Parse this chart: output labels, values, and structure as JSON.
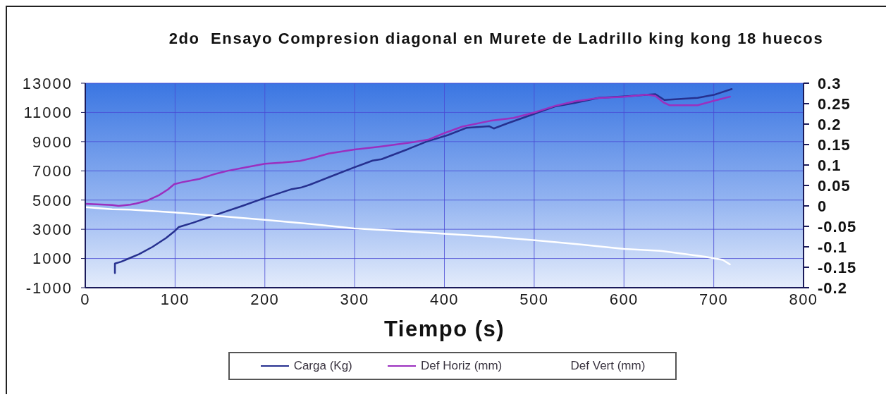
{
  "chart_data": {
    "type": "line",
    "title": "2do  Ensayo Compresion diagonal en Murete de Ladrillo king kong 18 huecos",
    "xlabel": "Tiempo (s)",
    "xlim": [
      0,
      800
    ],
    "xticks": [
      0,
      100,
      200,
      300,
      400,
      500,
      600,
      700,
      800
    ],
    "ylim": [
      -1000,
      13000
    ],
    "yticks": [
      -1000,
      1000,
      3000,
      5000,
      7000,
      9000,
      11000,
      13000
    ],
    "y2lim": [
      -0.2,
      0.3
    ],
    "y2ticks": [
      -0.2,
      -0.15,
      -0.1,
      -0.05,
      0,
      0.05,
      0.1,
      0.15,
      0.2,
      0.25,
      0.3
    ],
    "grid": true,
    "legend": "bottom",
    "series": [
      {
        "name": "Carga (Kg)",
        "color": "#26308f",
        "x": [
          33,
          33,
          40,
          50,
          60,
          75,
          90,
          100,
          104,
          120,
          146,
          175,
          200,
          230,
          240,
          250,
          275,
          300,
          320,
          330,
          360,
          380,
          404,
          425,
          450,
          455,
          470,
          500,
          523,
          545,
          572,
          600,
          635,
          645,
          682,
          700,
          720
        ],
        "values": [
          0,
          650,
          780,
          1040,
          1300,
          1800,
          2400,
          2900,
          3150,
          3450,
          4000,
          4600,
          5150,
          5750,
          5850,
          6050,
          6650,
          7250,
          7700,
          7800,
          8500,
          9000,
          9450,
          9950,
          10050,
          9900,
          10250,
          10900,
          11400,
          11650,
          12000,
          12100,
          12250,
          11850,
          12000,
          12200,
          12600
        ]
      },
      {
        "name": "Def Horiz (mm)",
        "color": "#9b2fbf",
        "axis": "y2",
        "x": [
          0,
          30,
          37,
          50,
          57,
          69,
          82,
          92,
          99,
          108,
          127,
          146,
          159,
          180,
          200,
          220,
          239,
          255,
          271,
          300,
          328,
          366,
          382,
          400,
          420,
          451,
          477,
          501,
          524,
          546,
          572,
          600,
          625,
          635,
          644,
          651,
          682,
          700,
          718
        ],
        "values": [
          0.005,
          0.002,
          0.0,
          0.003,
          0.006,
          0.013,
          0.026,
          0.04,
          0.053,
          0.058,
          0.066,
          0.079,
          0.086,
          0.095,
          0.103,
          0.106,
          0.11,
          0.118,
          0.128,
          0.138,
          0.145,
          0.156,
          0.162,
          0.178,
          0.194,
          0.208,
          0.215,
          0.229,
          0.245,
          0.256,
          0.264,
          0.267,
          0.272,
          0.269,
          0.253,
          0.246,
          0.246,
          0.257,
          0.267
        ]
      },
      {
        "name": "Def Vert (mm)",
        "color": "#ffffff",
        "axis": "y2",
        "x": [
          0,
          30,
          50,
          99,
          150,
          200,
          250,
          300,
          350,
          400,
          450,
          501,
          550,
          600,
          641,
          690,
          710,
          718
        ],
        "values": [
          -0.003,
          -0.008,
          -0.009,
          -0.016,
          -0.025,
          -0.034,
          -0.044,
          -0.055,
          -0.061,
          -0.068,
          -0.075,
          -0.084,
          -0.094,
          -0.105,
          -0.11,
          -0.124,
          -0.132,
          -0.143
        ]
      }
    ]
  }
}
